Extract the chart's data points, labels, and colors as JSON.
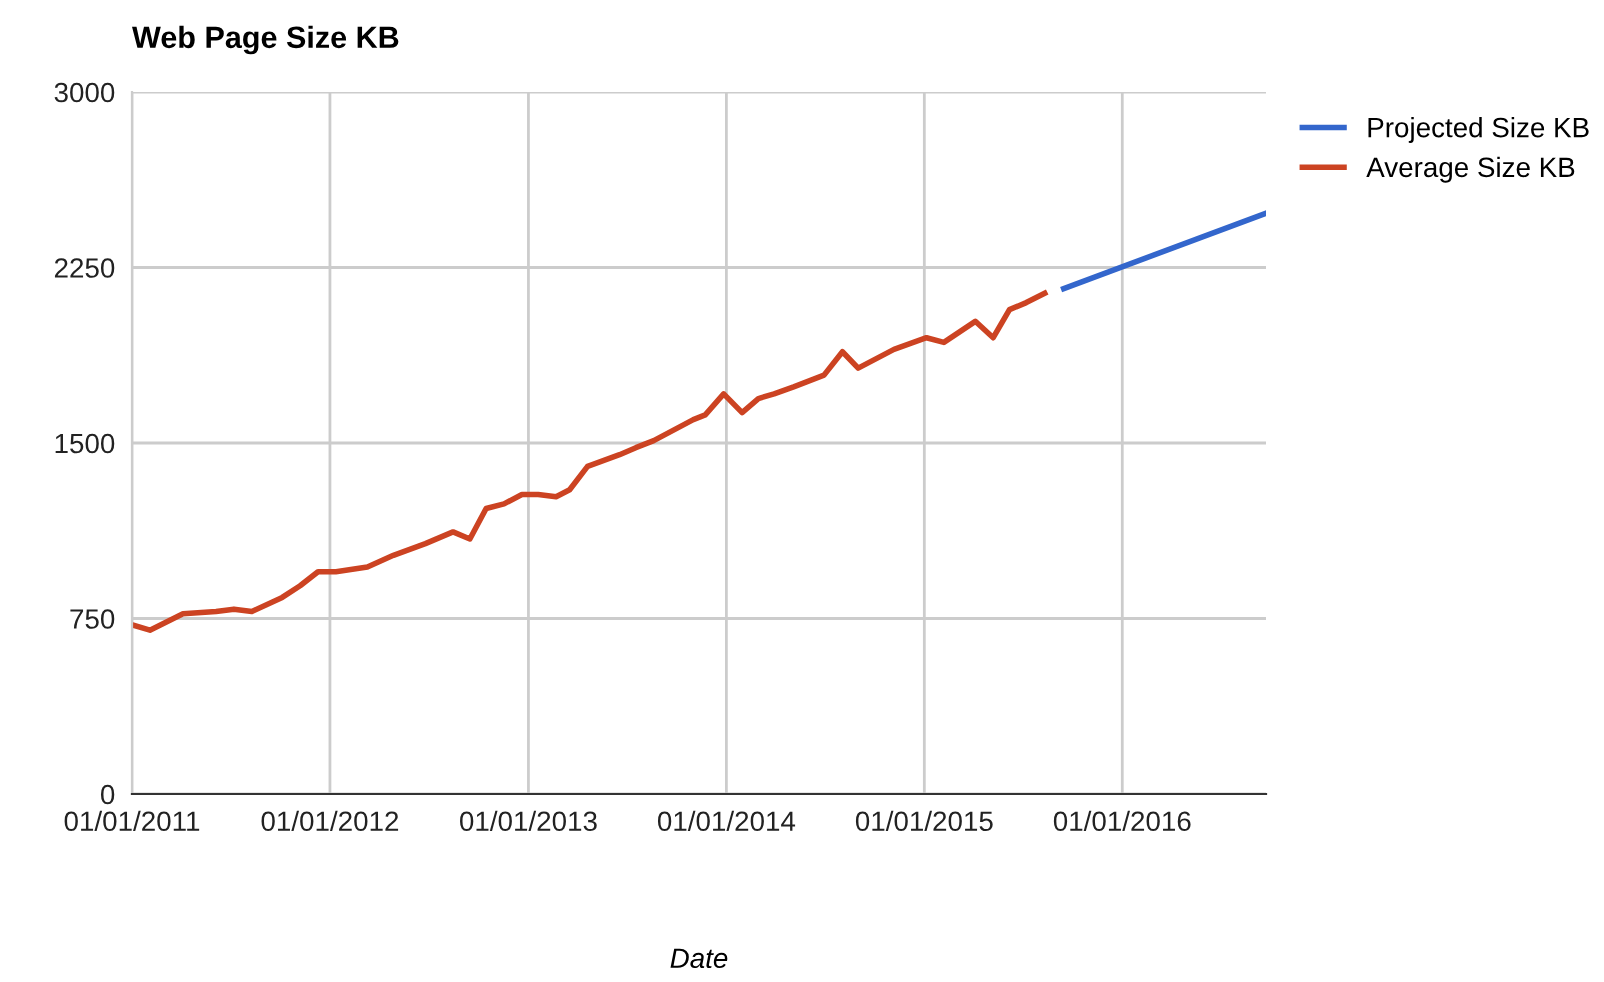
{
  "chart_data": {
    "type": "line",
    "title": "Web Page Size KB",
    "xlabel": "Date",
    "xlim": [
      "2011-01-01",
      "2016-09-22"
    ],
    "ylim": [
      0,
      3000
    ],
    "xticks": [
      {
        "value": "2011-01-01",
        "label": "01/01/2011"
      },
      {
        "value": "2012-01-01",
        "label": "01/01/2012"
      },
      {
        "value": "2013-01-01",
        "label": "01/01/2013"
      },
      {
        "value": "2014-01-01",
        "label": "01/01/2014"
      },
      {
        "value": "2015-01-01",
        "label": "01/01/2015"
      },
      {
        "value": "2016-01-01",
        "label": "01/01/2016"
      }
    ],
    "yticks": [
      0,
      750,
      1500,
      2250,
      3000
    ],
    "grid": true,
    "legend": "right",
    "line_style": "solid",
    "marker": "none",
    "series": [
      {
        "name": "Projected Size KB",
        "color": "#3366cc",
        "x": [
          "2015-09-15",
          "2016-09-20"
        ],
        "values": [
          2160,
          2480
        ]
      },
      {
        "name": "Average Size KB",
        "color": "#cc4322",
        "x": [
          "2011-01-05",
          "2011-02-03",
          "2011-04-05",
          "2011-06-05",
          "2011-07-08",
          "2011-08-10",
          "2011-10-05",
          "2011-11-07",
          "2011-12-10",
          "2012-01-12",
          "2012-03-10",
          "2012-04-27",
          "2012-06-25",
          "2012-08-15",
          "2012-09-15",
          "2012-10-15",
          "2012-11-17",
          "2012-12-20",
          "2013-01-19",
          "2013-02-21",
          "2013-03-18",
          "2013-04-20",
          "2013-06-18",
          "2013-07-18",
          "2013-08-20",
          "2013-11-01",
          "2013-11-23",
          "2013-12-27",
          "2014-01-30",
          "2014-03-01",
          "2014-03-30",
          "2014-05-05",
          "2014-06-30",
          "2014-08-03",
          "2014-09-01",
          "2014-11-06",
          "2015-01-05",
          "2015-02-06",
          "2015-04-05",
          "2015-05-08",
          "2015-06-07",
          "2015-07-08",
          "2015-08-11"
        ],
        "values": [
          720,
          700,
          770,
          780,
          790,
          780,
          840,
          890,
          950,
          950,
          970,
          1020,
          1070,
          1120,
          1090,
          1220,
          1240,
          1280,
          1280,
          1270,
          1300,
          1400,
          1450,
          1480,
          1510,
          1600,
          1620,
          1710,
          1630,
          1690,
          1710,
          1740,
          1790,
          1890,
          1820,
          1900,
          1950,
          1930,
          2020,
          1950,
          2070,
          2100,
          2140
        ]
      }
    ]
  }
}
